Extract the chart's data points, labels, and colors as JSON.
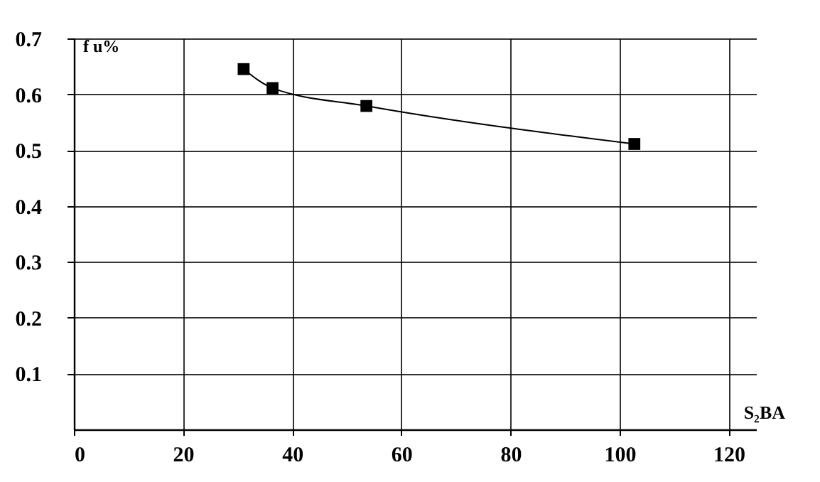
{
  "chart_data": {
    "type": "line",
    "xlabel": "S₂BA",
    "ylabel": "f u%",
    "x": [
      31.1,
      36.4,
      53.6,
      102.7
    ],
    "values": [
      0.645,
      0.611,
      0.579,
      0.511
    ],
    "color": "#000000",
    "marker": "square",
    "line_style": "solid",
    "xlim": [
      0,
      125
    ],
    "ylim": [
      0,
      0.7
    ],
    "xticks": [
      0,
      20,
      40,
      60,
      80,
      100,
      120
    ],
    "yticks": [
      0.1,
      0.2,
      0.3,
      0.4,
      0.5,
      0.6,
      0.7
    ],
    "grid": true
  }
}
